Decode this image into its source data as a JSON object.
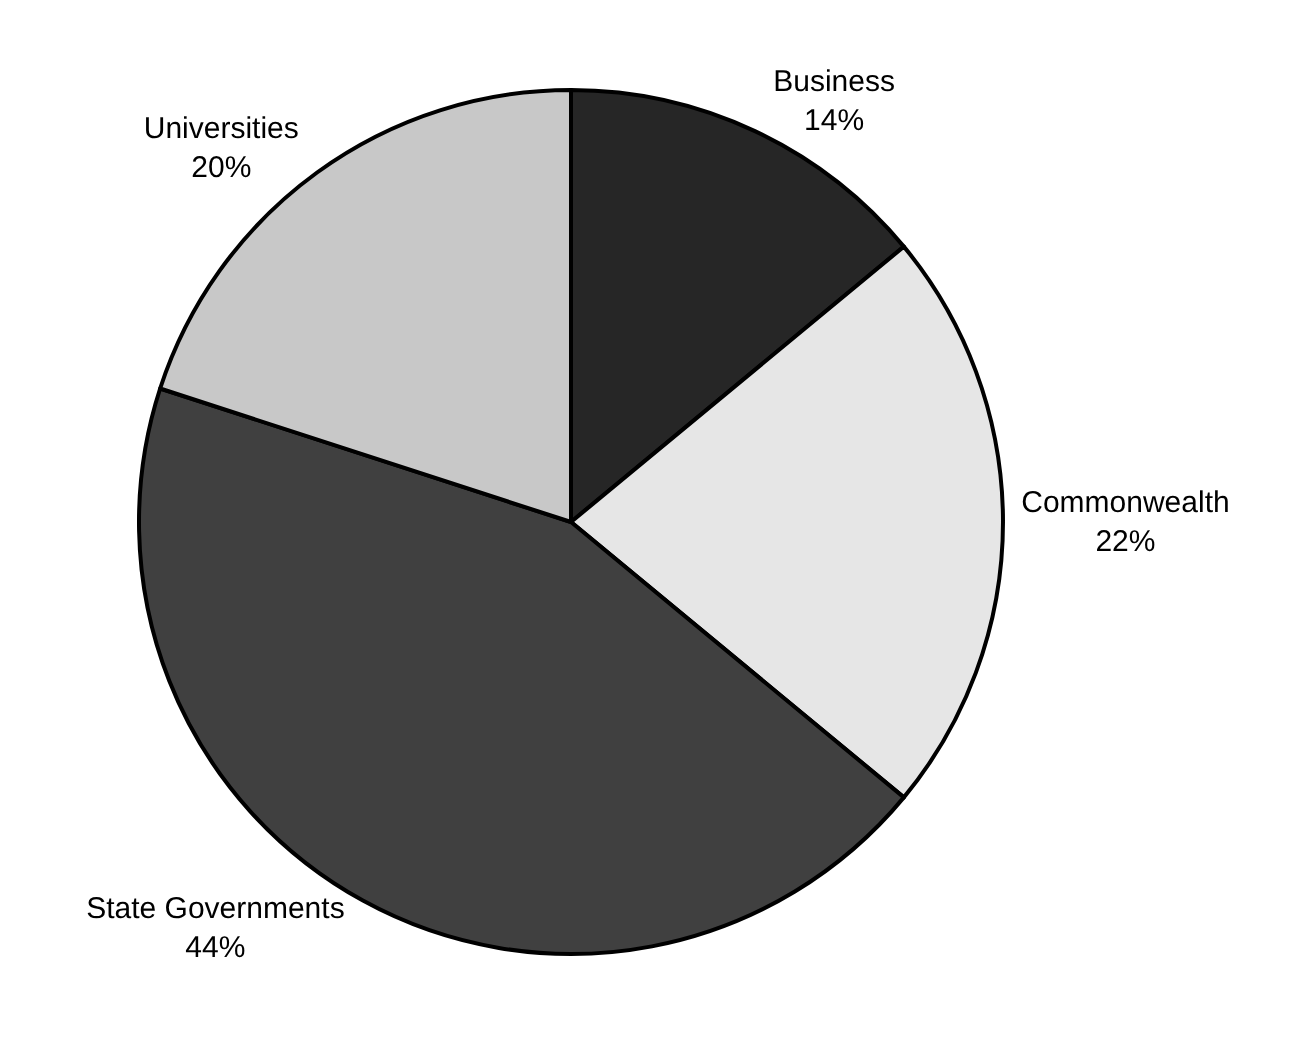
{
  "chart_data": {
    "type": "pie",
    "categories": [
      "Business",
      "Commonwealth",
      "State Governments",
      "Universities"
    ],
    "values": [
      14,
      22,
      44,
      20
    ],
    "value_labels": [
      "14%",
      "22%",
      "44%",
      "20%"
    ],
    "colors": [
      "#262626",
      "#e6e6e6",
      "#404040",
      "#c8c8c8"
    ],
    "legend": false
  }
}
